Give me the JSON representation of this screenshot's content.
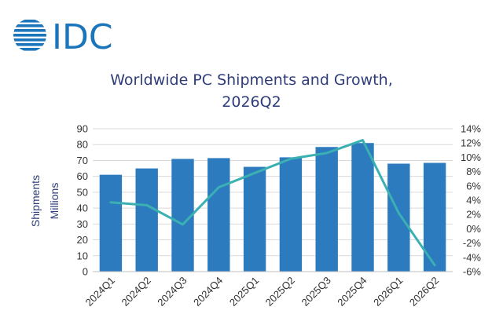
{
  "logo": {
    "text": "IDC",
    "color": "#1b75bb"
  },
  "chart_data": {
    "type": "bar",
    "title": "Worldwide PC Shipments and Growth,",
    "subtitle": "2026Q2",
    "categories": [
      "2024Q1",
      "2024Q2",
      "2024Q3",
      "2024Q4",
      "2025Q1",
      "2025Q2",
      "2025Q3",
      "2025Q4",
      "2026Q1",
      "2026Q2"
    ],
    "ylabel_lines": [
      "Shipments",
      "Millions"
    ],
    "ylim": [
      0,
      90
    ],
    "yticks": [
      "0",
      "10",
      "20",
      "30",
      "40",
      "50",
      "60",
      "70",
      "80",
      "90"
    ],
    "y2lim": [
      -6,
      14
    ],
    "y2ticks": [
      "-6%",
      "-4%",
      "-2%",
      "0%",
      "2%",
      "4%",
      "6%",
      "8%",
      "10%",
      "12%",
      "14%"
    ],
    "grid": true,
    "series": [
      {
        "kind": "bar",
        "axis": "left",
        "color": "#2d7bbf",
        "values": [
          61,
          65,
          71,
          71.5,
          66,
          72,
          78.5,
          81,
          68,
          68.5
        ]
      },
      {
        "kind": "line",
        "axis": "right",
        "color": "#3bb0b2",
        "values": [
          3.7,
          3.3,
          0.6,
          5.8,
          7.8,
          9.8,
          10.6,
          12.4,
          2.2,
          -5.1
        ]
      }
    ]
  }
}
